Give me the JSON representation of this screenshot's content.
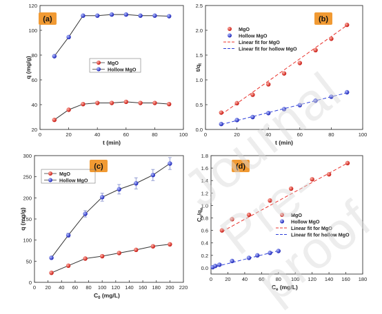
{
  "watermark": "Journal Pre-proof",
  "chart_data": [
    {
      "panel_label": "(a)",
      "type": "line",
      "x": [
        10,
        20,
        30,
        40,
        50,
        60,
        70,
        80,
        90
      ],
      "series": [
        {
          "name": "MgO",
          "color": "#e8302a",
          "values": [
            28.5,
            37.5,
            42.5,
            43.5,
            43.5,
            44.5,
            43.5,
            43.5,
            42.5
          ]
        },
        {
          "name": "Hollow MgO",
          "color": "#2a3cd8",
          "values": [
            85,
            102,
            121,
            121,
            122,
            122,
            121,
            121,
            120.5
          ]
        }
      ],
      "xlabel": "t (min)",
      "ylabel": "q (mg/g)",
      "xlim": [
        0,
        100
      ],
      "ylim": [
        20,
        130
      ],
      "xticks": [
        "0",
        "20",
        "40",
        "60",
        "80",
        "100"
      ],
      "yticks": [
        "20",
        "40",
        "60",
        "80",
        "100",
        "120"
      ],
      "legend": "right-middle",
      "grid": false
    },
    {
      "panel_label": "(b)",
      "type": "scatter",
      "x": [
        10,
        20,
        30,
        40,
        50,
        60,
        70,
        80,
        90
      ],
      "series": [
        {
          "name": "MgO",
          "color": "#e8302a",
          "values": [
            0.34,
            0.53,
            0.7,
            0.91,
            1.13,
            1.34,
            1.6,
            1.83,
            2.11
          ]
        },
        {
          "name": "Hollow MgO",
          "color": "#2a3cd8",
          "values": [
            0.11,
            0.19,
            0.25,
            0.33,
            0.41,
            0.49,
            0.58,
            0.66,
            0.75
          ]
        }
      ],
      "fits": [
        {
          "name": "Linear fit for MgO",
          "color": "#e8302a",
          "x": [
            10,
            90
          ],
          "y": [
            0.3,
            2.1
          ]
        },
        {
          "name": "Linear fit for hollow MgO",
          "color": "#2a3cd8",
          "x": [
            10,
            90
          ],
          "y": [
            0.1,
            0.74
          ]
        }
      ],
      "xlabel": "t (min)",
      "ylabel": "t/q",
      "ylabel_sub": "t",
      "xlim": [
        0,
        100
      ],
      "ylim": [
        0,
        2.5
      ],
      "xticks": [
        "0",
        "20",
        "40",
        "60",
        "80",
        "100"
      ],
      "yticks": [
        "0.0",
        "0.5",
        "1.0",
        "1.5",
        "2.0",
        "2.5"
      ],
      "legend": "top-left",
      "grid": false
    },
    {
      "panel_label": "(c)",
      "type": "line",
      "x": [
        25,
        50,
        75,
        100,
        125,
        150,
        175,
        200
      ],
      "series": [
        {
          "name": "MgO",
          "color": "#e8302a",
          "values": [
            24,
            42,
            60,
            66,
            74,
            82,
            91,
            96
          ]
        },
        {
          "name": "Hollow MgO",
          "color": "#2a3cd8",
          "values": [
            62,
            119,
            173,
            215,
            235,
            250,
            271,
            300
          ]
        }
      ],
      "errors": [
        3,
        5,
        8,
        10,
        12,
        14,
        14,
        15
      ],
      "xlabel": "C",
      "xlabel_sub": "0",
      "xlabel_unit": " (mg/L)",
      "ylabel": "q (mg/g)",
      "xlim": [
        0,
        220
      ],
      "ylim": [
        0,
        320
      ],
      "xticks": [
        "0",
        "20",
        "40",
        "60",
        "80",
        "100",
        "120",
        "140",
        "160",
        "180",
        "200",
        "220"
      ],
      "yticks": [
        "0",
        "50",
        "100",
        "150",
        "200",
        "250",
        "300"
      ],
      "legend": "top-left",
      "grid": false
    },
    {
      "panel_label": "(d)",
      "type": "scatter",
      "series": [
        {
          "name": "MgO",
          "color": "#e8302a",
          "x": [
            13,
            25,
            45,
            70,
            95,
            120,
            140,
            162
          ],
          "values": [
            0.6,
            0.78,
            0.85,
            1.08,
            1.27,
            1.42,
            1.5,
            1.68
          ]
        },
        {
          "name": "Hollow MgO",
          "color": "#2a3cd8",
          "x": [
            2,
            5,
            10,
            25,
            45,
            55,
            70,
            80
          ],
          "values": [
            0.01,
            0.03,
            0.05,
            0.11,
            0.16,
            0.2,
            0.24,
            0.27
          ]
        }
      ],
      "fits": [
        {
          "name": "Linear fit for MgO",
          "color": "#e8302a",
          "x": [
            13,
            162
          ],
          "y": [
            0.58,
            1.68
          ]
        },
        {
          "name": "Linear fit for hollow MgO",
          "color": "#2a3cd8",
          "x": [
            0,
            82
          ],
          "y": [
            0.0,
            0.28
          ]
        }
      ],
      "xlabel": "C",
      "xlabel_sub": "e",
      "xlabel_unit": " (mg/L)",
      "ylabel": "C",
      "ylabel_sub": "e",
      "ylabel_tail": "/q",
      "ylabel_tail_sub": "e",
      "xlim": [
        0,
        180
      ],
      "ylim": [
        -0.1,
        1.8
      ],
      "xticks": [
        "0",
        "20",
        "40",
        "60",
        "80",
        "100",
        "120",
        "140",
        "160",
        "180"
      ],
      "yticks": [
        "0.0",
        "0.2",
        "0.4",
        "0.6",
        "0.8",
        "1.0",
        "1.2",
        "1.4",
        "1.6",
        "1.8"
      ],
      "legend": "bottom-right",
      "grid": false
    }
  ]
}
